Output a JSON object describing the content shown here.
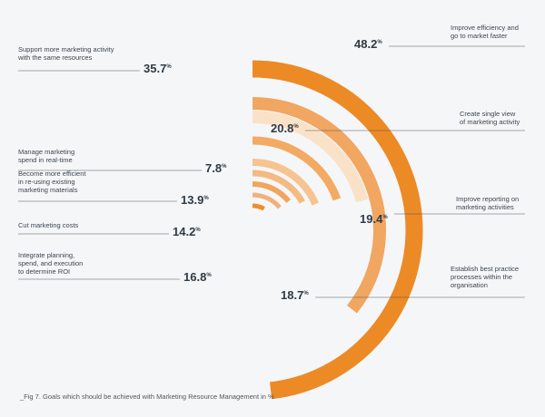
{
  "caption": "_Fig 7. Goals which should be achieved with Marketing Resource Management in %",
  "chart_data": {
    "type": "radial-bar",
    "unit": "%",
    "series": [
      {
        "label": [
          "Improve efficiency and",
          "go to market faster"
        ],
        "value": 48.2,
        "value_text": "48.2",
        "color": "#ec8a26"
      },
      {
        "label": [
          "Support more marketing activity",
          "with the same resources"
        ],
        "value": 35.7,
        "value_text": "35.7",
        "color": "#f1a661"
      },
      {
        "label": [
          "Create single view",
          "of marketing activity"
        ],
        "value": 20.8,
        "value_text": "20.8",
        "color": "#fae2c8"
      },
      {
        "label": [
          "Improve reporting on",
          "marketing activities"
        ],
        "value": 19.4,
        "value_text": "19.4",
        "color": "#f3aa62"
      },
      {
        "label": [
          "Establish best practice",
          "processes within the",
          "organisation"
        ],
        "value": 18.7,
        "value_text": "18.7",
        "color": "#f6c391"
      },
      {
        "label": [
          "Integrate planning,",
          "spend, and execution",
          "to determine ROI"
        ],
        "value": 16.8,
        "value_text": "16.8",
        "color": "#f4ba83"
      },
      {
        "label": [
          "Cut marketing costs"
        ],
        "value": 14.2,
        "value_text": "14.2",
        "color": "#f2a55c"
      },
      {
        "label": [
          "Become more efficient",
          "in re-using existing",
          "marketing materials"
        ],
        "value": 13.9,
        "value_text": "13.9",
        "color": "#f0b27a"
      },
      {
        "label": [
          "Manage marketing",
          "spend in real-time"
        ],
        "value": 7.8,
        "value_text": "7.8",
        "color": "#ee8d2c"
      }
    ]
  }
}
